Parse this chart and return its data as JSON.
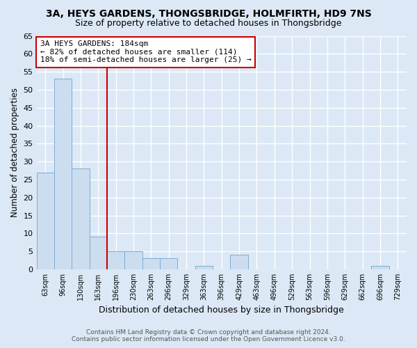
{
  "title": "3A, HEYS GARDENS, THONGSBRIDGE, HOLMFIRTH, HD9 7NS",
  "subtitle": "Size of property relative to detached houses in Thongsbridge",
  "xlabel": "Distribution of detached houses by size in Thongsbridge",
  "ylabel": "Number of detached properties",
  "categories": [
    "63sqm",
    "96sqm",
    "130sqm",
    "163sqm",
    "196sqm",
    "230sqm",
    "263sqm",
    "296sqm",
    "329sqm",
    "363sqm",
    "396sqm",
    "429sqm",
    "463sqm",
    "496sqm",
    "529sqm",
    "563sqm",
    "596sqm",
    "629sqm",
    "662sqm",
    "696sqm",
    "729sqm"
  ],
  "values": [
    27,
    53,
    28,
    9,
    5,
    5,
    3,
    3,
    0,
    1,
    0,
    4,
    0,
    0,
    0,
    0,
    0,
    0,
    0,
    1,
    0
  ],
  "bar_color": "#ccddf0",
  "bar_edge_color": "#7aadd4",
  "background_color": "#dce8f5",
  "grid_color": "#ffffff",
  "vline_x": 3.5,
  "vline_color": "#cc0000",
  "annotation_line1": "3A HEYS GARDENS: 184sqm",
  "annotation_line2": "← 82% of detached houses are smaller (114)",
  "annotation_line3": "18% of semi-detached houses are larger (25) →",
  "annotation_box_color": "#ffffff",
  "annotation_border_color": "#cc0000",
  "ylim": [
    0,
    65
  ],
  "yticks": [
    0,
    5,
    10,
    15,
    20,
    25,
    30,
    35,
    40,
    45,
    50,
    55,
    60,
    65
  ],
  "footer_line1": "Contains HM Land Registry data © Crown copyright and database right 2024.",
  "footer_line2": "Contains public sector information licensed under the Open Government Licence v3.0."
}
